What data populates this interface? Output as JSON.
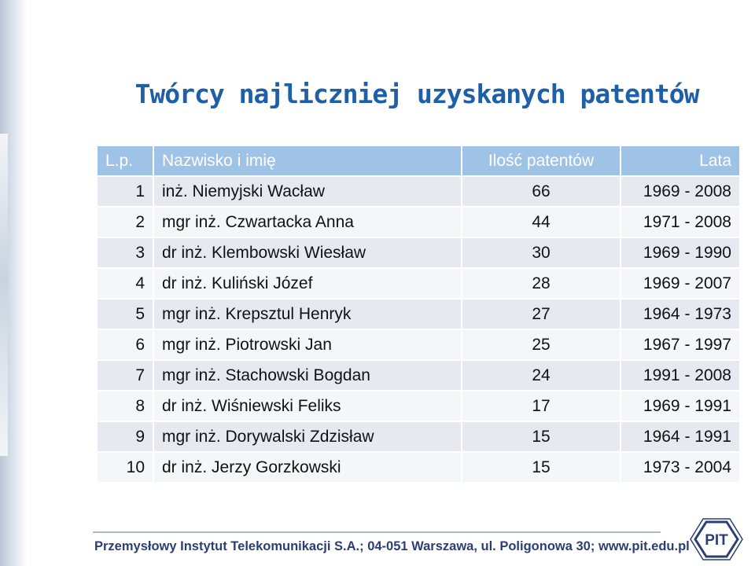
{
  "title": "Twórcy najliczniej uzyskanych patentów",
  "table": {
    "headers": [
      "L.p.",
      "Nazwisko i imię",
      "Ilość patentów",
      "Lata"
    ],
    "rows": [
      [
        "1",
        "inż. Niemyjski Wacław",
        "66",
        "1969 - 2008"
      ],
      [
        "2",
        "mgr inż. Czwartacka Anna",
        "44",
        "1971 - 2008"
      ],
      [
        "3",
        "dr inż. Klembowski Wiesław",
        "30",
        "1969 - 1990"
      ],
      [
        "4",
        "dr inż. Kuliński Józef",
        "28",
        "1969 - 2007"
      ],
      [
        "5",
        "mgr inż. Krepsztul Henryk",
        "27",
        "1964 - 1973"
      ],
      [
        "6",
        "mgr inż. Piotrowski Jan",
        "25",
        "1967 - 1997"
      ],
      [
        "7",
        "mgr inż. Stachowski Bogdan",
        "24",
        "1991 - 2008"
      ],
      [
        "8",
        "dr inż. Wiśniewski Feliks",
        "17",
        "1969 - 1991"
      ],
      [
        "9",
        "mgr inż. Dorywalski Zdzisław",
        "15",
        "1964 - 1991"
      ],
      [
        "10",
        "dr inż. Jerzy Gorzkowski",
        "15",
        "1973 - 2004"
      ]
    ]
  },
  "footer": {
    "text": "Przemysłowy Instytut Telekomunikacji S.A.; 04-051 Warszawa, ul. Poligonowa 30; www.pit.edu.pl",
    "logo_letters": "PIT"
  },
  "colors": {
    "title": "#1f5fa8",
    "header_bg": "#9fc3e6",
    "row_odd": "#e6eaf0",
    "row_even": "#f4f6f9",
    "footer_text": "#2c3e73"
  }
}
